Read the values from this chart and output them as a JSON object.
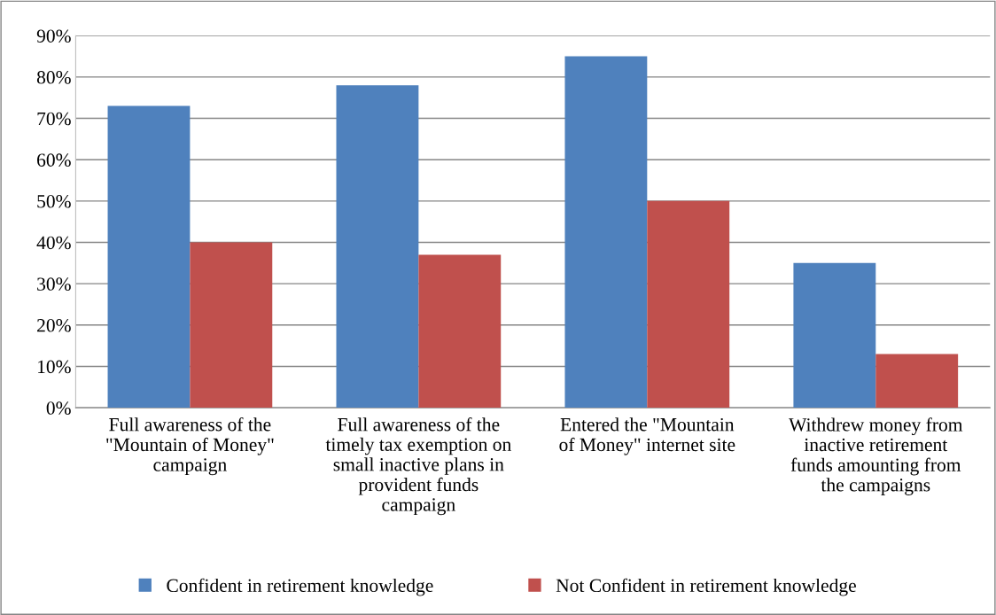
{
  "chart_data": {
    "type": "bar",
    "categories": [
      "Full awareness of the\n\"Mountain of Money\"\ncampaign",
      "Full awareness of the\ntimely tax exemption on\nsmall inactive plans in\nprovident funds\ncampaign",
      "Entered the \"Mountain\nof Money\" internet site",
      "Withdrew money from\ninactive retirement\nfunds amounting from\nthe campaigns"
    ],
    "series": [
      {
        "name": "Confident in retirement knowledge",
        "color": "#4f81bd",
        "values": [
          73,
          78,
          85,
          35
        ]
      },
      {
        "name": "Not Confident in retirement knowledge",
        "color": "#c0504d",
        "values": [
          40,
          37,
          50,
          13
        ]
      }
    ],
    "ylim": [
      0,
      90
    ],
    "yticks": [
      {
        "value": 0,
        "label": "0%"
      },
      {
        "value": 10,
        "label": "10%"
      },
      {
        "value": 20,
        "label": "20%"
      },
      {
        "value": 30,
        "label": "30%"
      },
      {
        "value": 40,
        "label": "40%"
      },
      {
        "value": 50,
        "label": "50%"
      },
      {
        "value": 60,
        "label": "60%"
      },
      {
        "value": 70,
        "label": "70%"
      },
      {
        "value": 80,
        "label": "80%"
      },
      {
        "value": 90,
        "label": "90%"
      }
    ],
    "grid": "y",
    "legend": "bottom"
  }
}
